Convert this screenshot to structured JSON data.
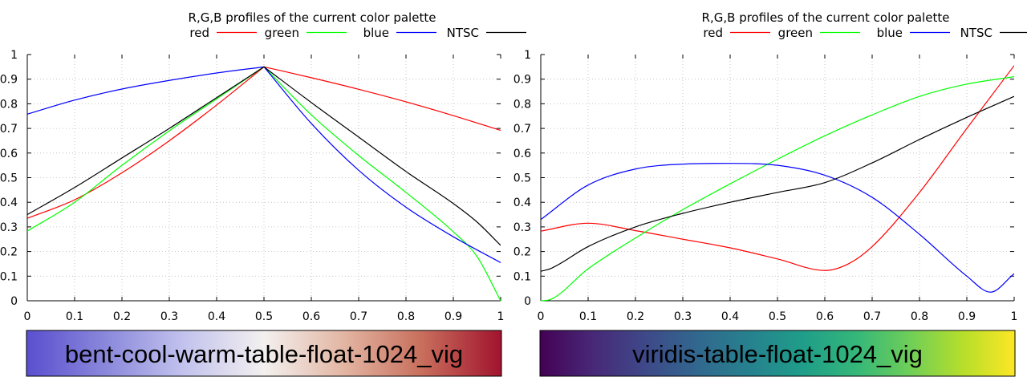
{
  "chart_data": [
    {
      "type": "line",
      "title": "R,G,B profiles of the current color palette",
      "xlabel": "",
      "ylabel": "",
      "xlim": [
        0,
        1
      ],
      "ylim": [
        0,
        1
      ],
      "xticks": [
        "0",
        "0.1",
        "0.2",
        "0.3",
        "0.4",
        "0.5",
        "0.6",
        "0.7",
        "0.8",
        "0.9",
        "1"
      ],
      "yticks": [
        "0",
        "0.1",
        "0.2",
        "0.3",
        "0.4",
        "0.5",
        "0.6",
        "0.7",
        "0.8",
        "0.9",
        "1"
      ],
      "grid": true,
      "legend_position": "top",
      "palette_name": "bent-cool-warm-table-float-1024_vig",
      "palette_colors": [
        "#5a4fcf",
        "#8a88db",
        "#c3c3ee",
        "#f3f0ef",
        "#e3b6a3",
        "#c86e5c",
        "#a1132e"
      ],
      "series": [
        {
          "name": "red",
          "color": "#ff0000",
          "x": [
            0,
            0.1,
            0.2,
            0.3,
            0.4,
            0.5,
            0.6,
            0.7,
            0.8,
            0.9,
            1
          ],
          "y": [
            0.335,
            0.41,
            0.52,
            0.65,
            0.795,
            0.95,
            0.906,
            0.859,
            0.808,
            0.752,
            0.692
          ]
        },
        {
          "name": "green",
          "color": "#00ff00",
          "x": [
            0,
            0.1,
            0.2,
            0.3,
            0.4,
            0.5,
            0.6,
            0.7,
            0.8,
            0.9,
            0.95,
            1
          ],
          "y": [
            0.283,
            0.4,
            0.55,
            0.69,
            0.82,
            0.95,
            0.755,
            0.59,
            0.44,
            0.28,
            0.18,
            0
          ]
        },
        {
          "name": "blue",
          "color": "#0000ff",
          "x": [
            0,
            0.1,
            0.2,
            0.3,
            0.4,
            0.5,
            0.6,
            0.7,
            0.8,
            0.9,
            1
          ],
          "y": [
            0.758,
            0.815,
            0.86,
            0.895,
            0.925,
            0.95,
            0.72,
            0.53,
            0.38,
            0.26,
            0.155
          ]
        },
        {
          "name": "NTSC",
          "color": "#000000",
          "x": [
            0,
            0.1,
            0.2,
            0.3,
            0.4,
            0.5,
            0.6,
            0.7,
            0.8,
            0.9,
            0.95,
            1
          ],
          "y": [
            0.35,
            0.46,
            0.58,
            0.7,
            0.825,
            0.95,
            0.805,
            0.665,
            0.525,
            0.395,
            0.32,
            0.225
          ]
        }
      ]
    },
    {
      "type": "line",
      "title": "R,G,B profiles of the current color palette",
      "xlabel": "",
      "ylabel": "",
      "xlim": [
        0,
        1
      ],
      "ylim": [
        0,
        1
      ],
      "xticks": [
        "0",
        "0.1",
        "0.2",
        "0.3",
        "0.4",
        "0.5",
        "0.6",
        "0.7",
        "0.8",
        "0.9",
        "1"
      ],
      "yticks": [
        "0",
        "0.1",
        "0.2",
        "0.3",
        "0.4",
        "0.5",
        "0.6",
        "0.7",
        "0.8",
        "0.9",
        "1"
      ],
      "grid": true,
      "legend_position": "top",
      "palette_name": "viridis-table-float-1024_vig",
      "palette_colors": [
        "#440154",
        "#482878",
        "#3e4989",
        "#31688e",
        "#26828e",
        "#1f9e89",
        "#35b779",
        "#6ece58",
        "#b5de2b",
        "#fde725"
      ],
      "series": [
        {
          "name": "red",
          "color": "#ff0000",
          "x": [
            0,
            0.1,
            0.2,
            0.3,
            0.4,
            0.5,
            0.6,
            0.65,
            0.7,
            0.8,
            0.9,
            1
          ],
          "y": [
            0.283,
            0.315,
            0.285,
            0.25,
            0.215,
            0.17,
            0.123,
            0.15,
            0.22,
            0.44,
            0.7,
            0.955
          ]
        },
        {
          "name": "green",
          "color": "#00ff00",
          "x": [
            0,
            0.02,
            0.1,
            0.2,
            0.3,
            0.4,
            0.5,
            0.6,
            0.7,
            0.8,
            0.9,
            1
          ],
          "y": [
            0,
            0.005,
            0.13,
            0.255,
            0.37,
            0.475,
            0.575,
            0.67,
            0.755,
            0.83,
            0.88,
            0.91
          ]
        },
        {
          "name": "blue",
          "color": "#0000ff",
          "x": [
            0,
            0.1,
            0.2,
            0.3,
            0.4,
            0.5,
            0.6,
            0.7,
            0.8,
            0.9,
            0.95,
            1
          ],
          "y": [
            0.33,
            0.47,
            0.535,
            0.555,
            0.558,
            0.55,
            0.51,
            0.42,
            0.27,
            0.1,
            0.035,
            0.11
          ]
        },
        {
          "name": "NTSC",
          "color": "#000000",
          "x": [
            0,
            0.02,
            0.1,
            0.2,
            0.3,
            0.4,
            0.5,
            0.6,
            0.7,
            0.8,
            0.9,
            1
          ],
          "y": [
            0.12,
            0.13,
            0.22,
            0.3,
            0.355,
            0.4,
            0.44,
            0.48,
            0.56,
            0.655,
            0.745,
            0.83
          ]
        }
      ]
    }
  ]
}
